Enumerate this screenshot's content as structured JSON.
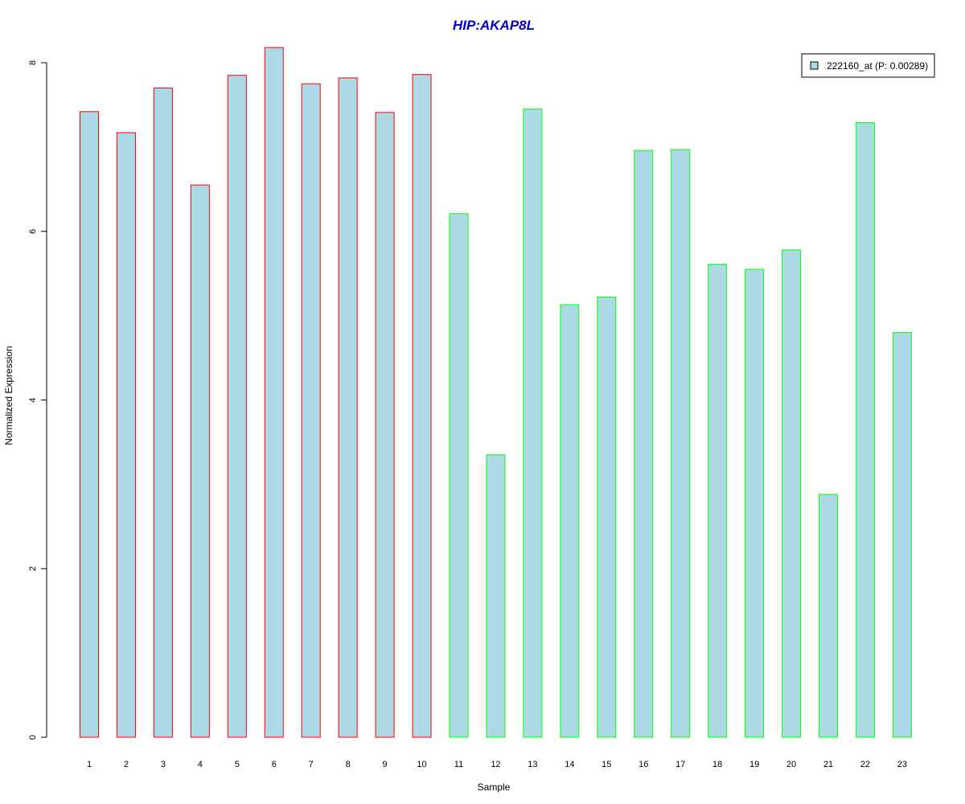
{
  "colors": {
    "title": "#0000cc",
    "bar_fill": "#add8e6",
    "group1_border": "#ff0000",
    "group2_border": "#00ff00",
    "axis": "#000000"
  },
  "chart_data": {
    "type": "bar",
    "title": "HIP:AKAP8L",
    "xlabel": "Sample",
    "ylabel": "Normalized Expression",
    "ylim": [
      0,
      8
    ],
    "yticks": [
      0,
      2,
      4,
      6,
      8
    ],
    "grid": false,
    "legend_position": "top-right",
    "categories": [
      "1",
      "2",
      "3",
      "4",
      "5",
      "6",
      "7",
      "8",
      "9",
      "10",
      "11",
      "12",
      "13",
      "14",
      "15",
      "16",
      "17",
      "18",
      "19",
      "20",
      "21",
      "22",
      "23"
    ],
    "series": [
      {
        "name": "222160_at (P: 0.00289)",
        "values": [
          7.42,
          7.17,
          7.7,
          6.55,
          7.85,
          8.18,
          7.75,
          7.82,
          7.41,
          7.86,
          6.21,
          3.35,
          7.45,
          5.13,
          5.22,
          6.96,
          6.97,
          5.61,
          5.55,
          5.78,
          2.88,
          7.29,
          4.8
        ],
        "border_groups": [
          "group1",
          "group1",
          "group1",
          "group1",
          "group1",
          "group1",
          "group1",
          "group1",
          "group1",
          "group1",
          "group2",
          "group2",
          "group2",
          "group2",
          "group2",
          "group2",
          "group2",
          "group2",
          "group2",
          "group2",
          "group2",
          "group2",
          "group2"
        ]
      }
    ]
  }
}
